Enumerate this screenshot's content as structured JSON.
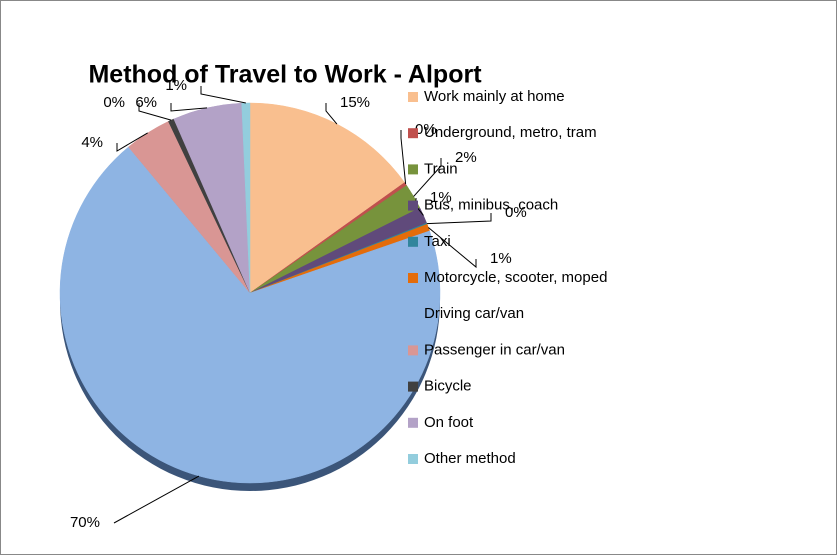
{
  "chart_data": {
    "type": "pie",
    "title": "Method of Travel to Work - Alport",
    "categories": [
      "Work mainly at home",
      "Underground, metro, tram",
      "Train",
      "Bus, minibus, coach",
      "Taxi",
      "Motorcycle, scooter, moped",
      "Driving car/van",
      "Passenger in car/van",
      "Bicycle",
      "On foot",
      "Other method"
    ],
    "values": [
      15.2,
      0.3,
      2.2,
      1.4,
      0.1,
      0.6,
      69.6,
      4.0,
      0.5,
      5.9,
      0.7
    ],
    "value_labels": [
      "15%",
      "0%",
      "2%",
      "1%",
      "0%",
      "1%",
      "70%",
      "4%",
      "0%",
      "6%",
      "1%"
    ],
    "colors": [
      "#f9bf8f",
      "#c0504d",
      "#77933c",
      "#604a7b",
      "#31859c",
      "#e46c0a",
      "#8eb4e3",
      "#d99694",
      "#404040",
      "#b3a2c7",
      "#93cddd"
    ],
    "legend": "right"
  }
}
